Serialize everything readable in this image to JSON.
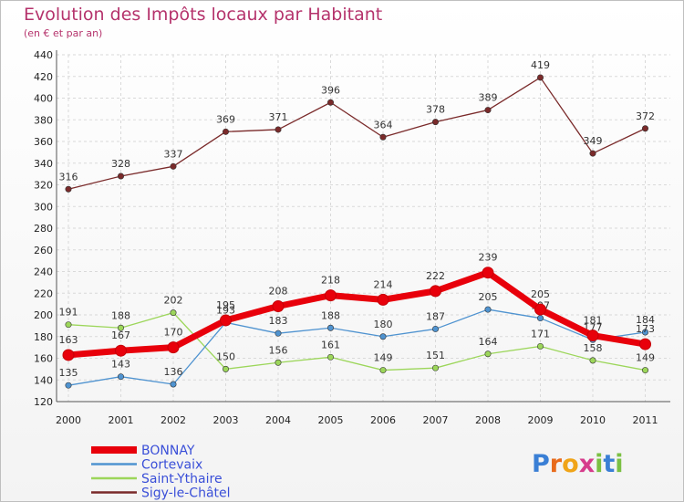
{
  "chart_data": {
    "type": "line",
    "title": "Evolution des Impôts locaux par Habitant",
    "subtitle": "(en € et par an)",
    "x": [
      "2000",
      "2001",
      "2002",
      "2003",
      "2004",
      "2005",
      "2006",
      "2007",
      "2008",
      "2009",
      "2010",
      "2011"
    ],
    "ylim": [
      120,
      440
    ],
    "yticks": [
      120,
      140,
      160,
      180,
      200,
      220,
      240,
      260,
      280,
      300,
      320,
      340,
      360,
      380,
      400,
      420,
      440
    ],
    "grid": true,
    "legend_position": "bottom-left",
    "series": [
      {
        "name": "BONNAY",
        "color": "#e8000b",
        "values": [
          163,
          167,
          170,
          195,
          208,
          218,
          214,
          222,
          239,
          205,
          181,
          173
        ],
        "labels": [
          "163",
          "167",
          "170",
          "195",
          "208",
          "218",
          "214",
          "222",
          "239",
          "205",
          "181",
          "173"
        ]
      },
      {
        "name": "Cortevaix",
        "color": "#4f93d0",
        "values": [
          135,
          143,
          136,
          193,
          183,
          188,
          180,
          187,
          205,
          197,
          177,
          184
        ],
        "labels": [
          "135",
          "143",
          "136",
          "193",
          "183",
          "188",
          "180",
          "187",
          "205",
          "197",
          "177",
          "184"
        ]
      },
      {
        "name": "Saint-Ythaire",
        "color": "#9cd65a",
        "values": [
          191,
          188,
          202,
          150,
          156,
          161,
          149,
          151,
          164,
          171,
          158,
          149
        ],
        "labels": [
          "191",
          "188",
          "202",
          "150",
          "156",
          "161",
          "149",
          "151",
          "164",
          "171",
          "158",
          "149"
        ]
      },
      {
        "name": "Sigy-le-Châtel",
        "color": "#7a2a2a",
        "values": [
          316,
          328,
          337,
          369,
          371,
          396,
          364,
          378,
          389,
          419,
          349,
          372
        ],
        "labels": [
          "316",
          "328",
          "337",
          "369",
          "371",
          "396",
          "364",
          "378",
          "389",
          "419",
          "349",
          "372"
        ]
      }
    ]
  },
  "brand": {
    "letters": [
      "P",
      "r",
      "o",
      "x",
      "i",
      "t",
      "i"
    ],
    "colors": [
      "#3a7fd5",
      "#e86b1c",
      "#f0a418",
      "#d63c8c",
      "#7bc043",
      "#3a7fd5",
      "#7bc043"
    ]
  }
}
